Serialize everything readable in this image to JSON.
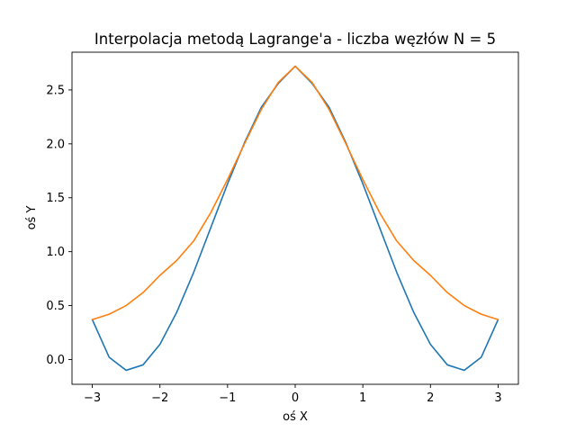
{
  "chart_data": {
    "type": "line",
    "title": "Interpolacja metodą Lagrange'a - liczba węzłów N = 5",
    "xlabel": "oś X",
    "ylabel": "oś Y",
    "xlim": [
      -3.3,
      3.3
    ],
    "ylim": [
      -0.23,
      2.85
    ],
    "xticks": [
      -3,
      -2,
      -1,
      0,
      1,
      2,
      3
    ],
    "xtick_labels": [
      "−3",
      "−2",
      "−1",
      "0",
      "1",
      "2",
      "3"
    ],
    "yticks": [
      0.0,
      0.5,
      1.0,
      1.5,
      2.0,
      2.5
    ],
    "ytick_labels": [
      "0.0",
      "0.5",
      "1.0",
      "1.5",
      "2.0",
      "2.5"
    ],
    "grid": false,
    "series": [
      {
        "color": "#1f77b4",
        "x": [
          -3.0,
          -2.75,
          -2.5,
          -2.25,
          -2.0,
          -1.75,
          -1.5,
          -1.25,
          -1.0,
          -0.75,
          -0.5,
          -0.25,
          0.0,
          0.25,
          0.5,
          0.75,
          1.0,
          1.25,
          1.5,
          1.75,
          2.0,
          2.25,
          2.5,
          2.75,
          3.0
        ],
        "y": [
          0.37,
          0.02,
          -0.1,
          -0.05,
          0.14,
          0.44,
          0.81,
          1.22,
          1.63,
          2.01,
          2.34,
          2.56,
          2.72,
          2.56,
          2.34,
          2.01,
          1.63,
          1.22,
          0.81,
          0.44,
          0.14,
          -0.05,
          -0.1,
          0.02,
          0.37
        ]
      },
      {
        "color": "#ff7f0e",
        "x": [
          -3.0,
          -2.75,
          -2.5,
          -2.25,
          -2.0,
          -1.75,
          -1.5,
          -1.25,
          -1.0,
          -0.75,
          -0.5,
          -0.25,
          0.0,
          0.25,
          0.5,
          0.75,
          1.0,
          1.25,
          1.5,
          1.75,
          2.0,
          2.25,
          2.5,
          2.75,
          3.0
        ],
        "y": [
          0.37,
          0.42,
          0.5,
          0.62,
          0.78,
          0.92,
          1.1,
          1.36,
          1.67,
          2.0,
          2.32,
          2.57,
          2.72,
          2.57,
          2.32,
          2.0,
          1.67,
          1.36,
          1.1,
          0.92,
          0.78,
          0.62,
          0.5,
          0.42,
          0.37
        ]
      }
    ]
  }
}
